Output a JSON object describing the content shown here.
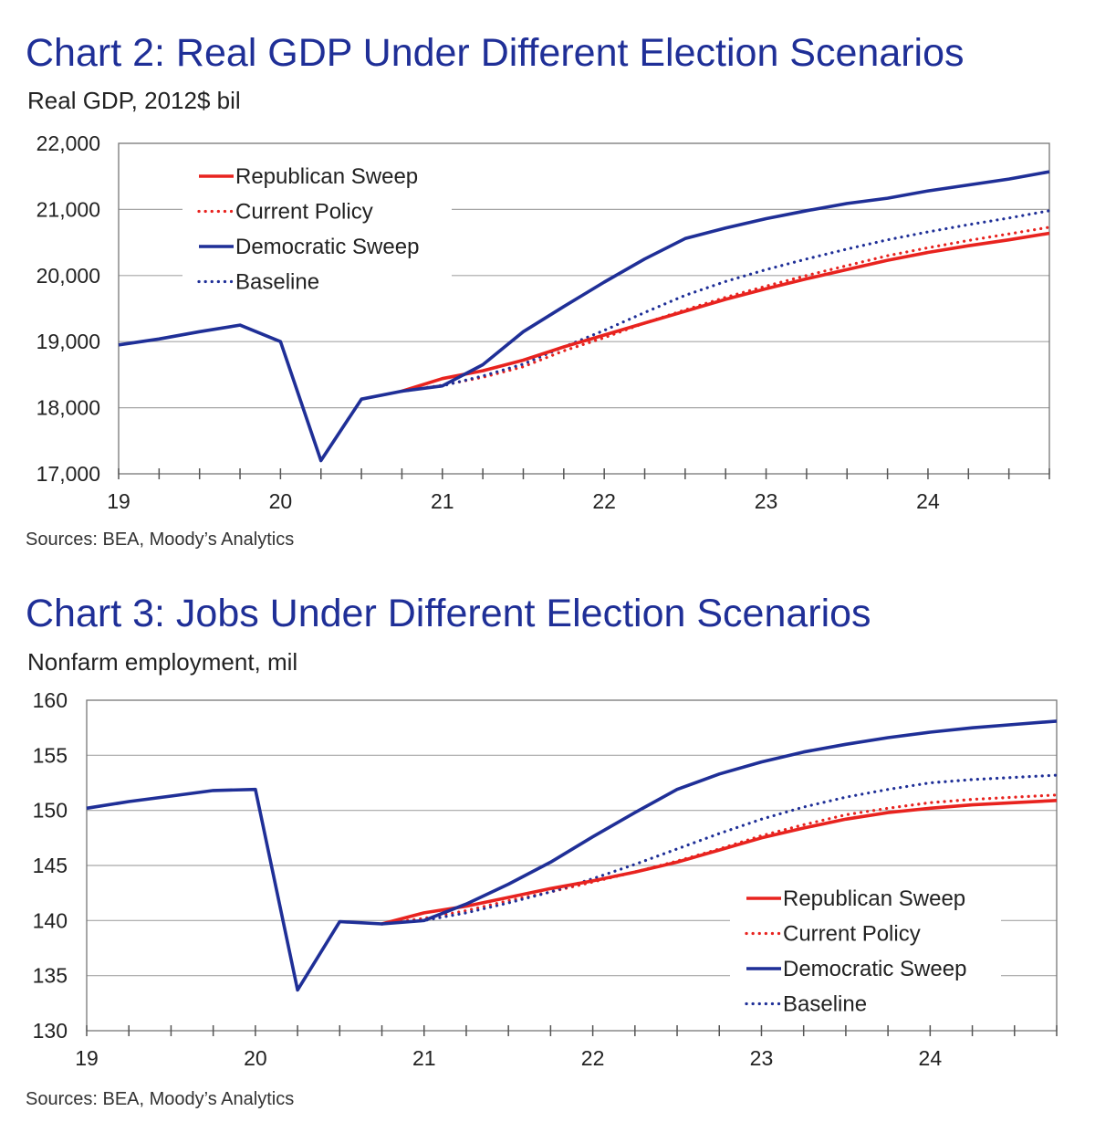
{
  "charts": [
    {
      "title": "Chart 2: Real GDP Under Different Election Scenarios",
      "subtitle": "Real GDP, 2012$ bil",
      "source": "Sources: BEA, Moody’s Analytics"
    },
    {
      "title": "Chart 3: Jobs Under Different Election Scenarios",
      "subtitle": "Nonfarm employment, mil",
      "source": "Sources: BEA, Moody’s Analytics"
    }
  ],
  "chart_data": [
    {
      "type": "line",
      "title": "Chart 2: Real GDP Under Different Election Scenarios",
      "ylabel": "Real GDP, 2012$ bil",
      "xlabel": "",
      "ylim": [
        17000,
        22000
      ],
      "yticks": [
        17000,
        18000,
        19000,
        20000,
        21000,
        22000
      ],
      "ytick_labels": [
        "17,000",
        "18,000",
        "19,000",
        "20,000",
        "21,000",
        "22,000"
      ],
      "xlim": [
        2019.0,
        2024.75
      ],
      "xticks": [
        2019,
        2020,
        2021,
        2022,
        2023,
        2024
      ],
      "xtick_labels": [
        "19",
        "20",
        "21",
        "22",
        "23",
        "24"
      ],
      "grid": true,
      "legend_position": "top-left",
      "series": [
        {
          "name": "Republican Sweep",
          "color": "#e8231f",
          "style": "solid",
          "x": [
            2020.75,
            2021.0,
            2021.25,
            2021.5,
            2021.75,
            2022.0,
            2022.25,
            2022.5,
            2022.75,
            2023.0,
            2023.25,
            2023.5,
            2023.75,
            2024.0,
            2024.25,
            2024.5,
            2024.75
          ],
          "y": [
            18250,
            18440,
            18560,
            18720,
            18920,
            19100,
            19280,
            19460,
            19640,
            19800,
            19950,
            20090,
            20230,
            20350,
            20450,
            20540,
            20640
          ]
        },
        {
          "name": "Current Policy",
          "color": "#e8231f",
          "style": "dotted",
          "x": [
            2020.75,
            2021.0,
            2021.25,
            2021.5,
            2021.75,
            2022.0,
            2022.25,
            2022.5,
            2022.75,
            2023.0,
            2023.25,
            2023.5,
            2023.75,
            2024.0,
            2024.25,
            2024.5,
            2024.75
          ],
          "y": [
            18250,
            18340,
            18460,
            18620,
            18860,
            19060,
            19280,
            19480,
            19670,
            19840,
            20000,
            20150,
            20300,
            20420,
            20530,
            20630,
            20730
          ]
        },
        {
          "name": "Democratic Sweep",
          "color": "#1f2f97",
          "style": "solid",
          "x": [
            2019.0,
            2019.25,
            2019.5,
            2019.75,
            2020.0,
            2020.25,
            2020.5,
            2020.75,
            2021.0,
            2021.25,
            2021.5,
            2021.75,
            2022.0,
            2022.25,
            2022.5,
            2022.75,
            2023.0,
            2023.25,
            2023.5,
            2023.75,
            2024.0,
            2024.25,
            2024.5,
            2024.75
          ],
          "y": [
            18950,
            19040,
            19150,
            19250,
            19000,
            17200,
            18130,
            18250,
            18330,
            18650,
            19150,
            19530,
            19900,
            20250,
            20560,
            20720,
            20860,
            20980,
            21090,
            21170,
            21280,
            21370,
            21460,
            21570
          ]
        },
        {
          "name": "Baseline",
          "color": "#1f2f97",
          "style": "dotted",
          "x": [
            2020.75,
            2021.0,
            2021.25,
            2021.5,
            2021.75,
            2022.0,
            2022.25,
            2022.5,
            2022.75,
            2023.0,
            2023.25,
            2023.5,
            2023.75,
            2024.0,
            2024.25,
            2024.5,
            2024.75
          ],
          "y": [
            18250,
            18330,
            18480,
            18660,
            18920,
            19170,
            19440,
            19700,
            19910,
            20090,
            20250,
            20400,
            20540,
            20660,
            20770,
            20870,
            20980
          ]
        }
      ]
    },
    {
      "type": "line",
      "title": "Chart 3: Jobs Under Different Election Scenarios",
      "ylabel": "Nonfarm employment, mil",
      "xlabel": "",
      "ylim": [
        130,
        160
      ],
      "yticks": [
        130,
        135,
        140,
        145,
        150,
        155,
        160
      ],
      "ytick_labels": [
        "130",
        "135",
        "140",
        "145",
        "150",
        "155",
        "160"
      ],
      "xlim": [
        2019.0,
        2024.75
      ],
      "xticks": [
        2019,
        2020,
        2021,
        2022,
        2023,
        2024
      ],
      "xtick_labels": [
        "19",
        "20",
        "21",
        "22",
        "23",
        "24"
      ],
      "grid": true,
      "legend_position": "bottom-right",
      "series": [
        {
          "name": "Republican Sweep",
          "color": "#e8231f",
          "style": "solid",
          "x": [
            2020.75,
            2021.0,
            2021.25,
            2021.5,
            2021.75,
            2022.0,
            2022.25,
            2022.5,
            2022.75,
            2023.0,
            2023.25,
            2023.5,
            2023.75,
            2024.0,
            2024.25,
            2024.5,
            2024.75
          ],
          "y": [
            139.7,
            140.7,
            141.3,
            142.1,
            142.9,
            143.6,
            144.4,
            145.3,
            146.4,
            147.5,
            148.4,
            149.2,
            149.8,
            150.2,
            150.5,
            150.7,
            150.9
          ]
        },
        {
          "name": "Current Policy",
          "color": "#e8231f",
          "style": "dotted",
          "x": [
            2020.75,
            2021.0,
            2021.25,
            2021.5,
            2021.75,
            2022.0,
            2022.25,
            2022.5,
            2022.75,
            2023.0,
            2023.25,
            2023.5,
            2023.75,
            2024.0,
            2024.25,
            2024.5,
            2024.75
          ],
          "y": [
            139.7,
            140.2,
            140.9,
            141.8,
            142.6,
            143.5,
            144.4,
            145.4,
            146.5,
            147.7,
            148.7,
            149.6,
            150.2,
            150.7,
            151.0,
            151.2,
            151.4
          ]
        },
        {
          "name": "Democratic Sweep",
          "color": "#1f2f97",
          "style": "solid",
          "x": [
            2019.0,
            2019.25,
            2019.5,
            2019.75,
            2020.0,
            2020.25,
            2020.5,
            2020.75,
            2021.0,
            2021.25,
            2021.5,
            2021.75,
            2022.0,
            2022.25,
            2022.5,
            2022.75,
            2023.0,
            2023.25,
            2023.5,
            2023.75,
            2024.0,
            2024.25,
            2024.5,
            2024.75
          ],
          "y": [
            150.2,
            150.8,
            151.3,
            151.8,
            151.9,
            133.7,
            139.9,
            139.7,
            140.0,
            141.5,
            143.3,
            145.3,
            147.6,
            149.8,
            151.9,
            153.3,
            154.4,
            155.3,
            156.0,
            156.6,
            157.1,
            157.5,
            157.8,
            158.1
          ]
        },
        {
          "name": "Baseline",
          "color": "#1f2f97",
          "style": "dotted",
          "x": [
            2020.75,
            2021.0,
            2021.25,
            2021.5,
            2021.75,
            2022.0,
            2022.25,
            2022.5,
            2022.75,
            2023.0,
            2023.25,
            2023.5,
            2023.75,
            2024.0,
            2024.25,
            2024.5,
            2024.75
          ],
          "y": [
            139.7,
            140.0,
            140.7,
            141.6,
            142.6,
            143.8,
            145.1,
            146.5,
            147.9,
            149.2,
            150.3,
            151.2,
            151.9,
            152.5,
            152.8,
            153.0,
            153.2
          ]
        }
      ]
    }
  ]
}
